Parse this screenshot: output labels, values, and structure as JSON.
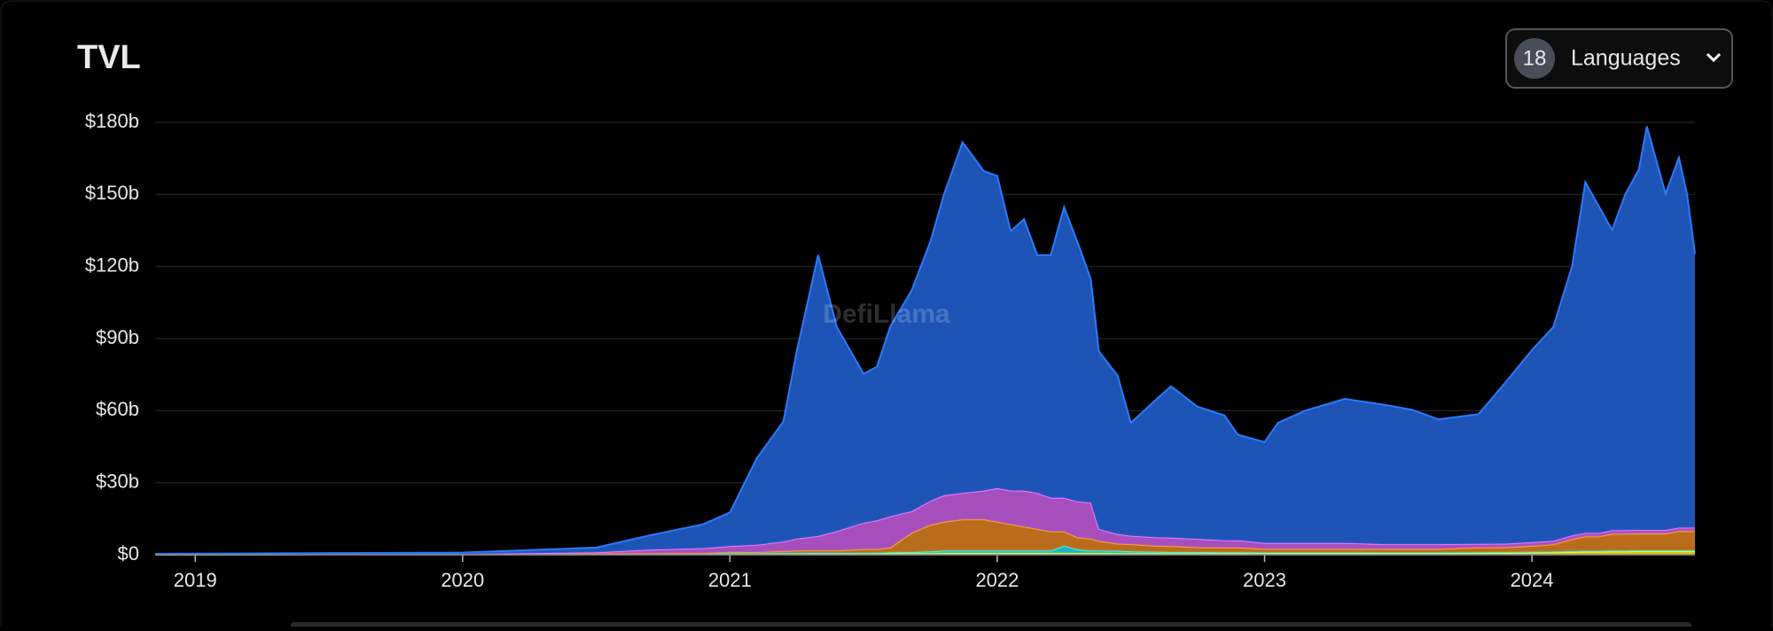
{
  "chart_data": {
    "type": "area",
    "stacked": true,
    "title": "TVL",
    "x": [
      2018.85,
      2019.5,
      2020.0,
      2020.5,
      2020.7,
      2020.9,
      2021.0,
      2021.1,
      2021.2,
      2021.25,
      2021.33,
      2021.4,
      2021.5,
      2021.55,
      2021.6,
      2021.68,
      2021.75,
      2021.8,
      2021.87,
      2021.95,
      2022.0,
      2022.05,
      2022.1,
      2022.15,
      2022.2,
      2022.25,
      2022.3,
      2022.35,
      2022.38,
      2022.45,
      2022.5,
      2022.6,
      2022.65,
      2022.75,
      2022.85,
      2022.9,
      2023.0,
      2023.05,
      2023.15,
      2023.3,
      2023.45,
      2023.55,
      2023.65,
      2023.8,
      2023.9,
      2024.0,
      2024.08,
      2024.15,
      2024.2,
      2024.25,
      2024.3,
      2024.35,
      2024.4,
      2024.43,
      2024.5,
      2024.55,
      2024.58,
      2024.61
    ],
    "series": [
      {
        "color": "#f2d21b",
        "values": [
          0.1,
          0.2,
          0.2,
          0.3,
          0.3,
          0.3,
          0.4,
          0.4,
          0.5,
          0.5,
          0.5,
          0.5,
          0.5,
          0.5,
          0.6,
          0.6,
          0.6,
          0.7,
          0.7,
          0.7,
          0.7,
          0.7,
          0.7,
          0.7,
          0.7,
          0.7,
          0.7,
          0.7,
          0.7,
          0.6,
          0.6,
          0.6,
          0.6,
          0.6,
          0.6,
          0.6,
          0.6,
          0.6,
          0.6,
          0.6,
          0.6,
          0.6,
          0.6,
          0.7,
          0.8,
          0.9,
          1,
          1.2,
          1.3,
          1.3,
          1.4,
          1.4,
          1.5,
          1.5,
          1.5,
          1.5,
          1.5,
          1.5
        ]
      },
      {
        "color": "#22c3d6",
        "values": [
          0,
          0,
          0.1,
          0.1,
          0.1,
          0.1,
          0.2,
          0.2,
          0.2,
          0.2,
          0.3,
          0.3,
          0.3,
          0.3,
          0.4,
          0.5,
          0.8,
          1,
          1,
          1,
          1,
          1,
          1,
          1,
          1,
          3,
          1.5,
          1,
          1,
          1,
          0.8,
          0.6,
          0.5,
          0.5,
          0.4,
          0.4,
          0.3,
          0.3,
          0.3,
          0.3,
          0.3,
          0.3,
          0.3,
          0.3,
          0.3,
          0.3,
          0.3,
          0.3,
          0.3,
          0.3,
          0.3,
          0.3,
          0.3,
          0.3,
          0.3,
          0.3,
          0.3,
          0.3
        ]
      },
      {
        "color": "#c9761e",
        "values": [
          0,
          0,
          0,
          0.1,
          0.2,
          0.3,
          0.5,
          0.5,
          0.8,
          1,
          1,
          1,
          1.5,
          1.5,
          2,
          8,
          11,
          12,
          13,
          13,
          12,
          11,
          10,
          9,
          8,
          6,
          5,
          5,
          4,
          3,
          3,
          2.5,
          2.5,
          2,
          2,
          2,
          1.5,
          1.5,
          1.5,
          1.5,
          1.5,
          1.5,
          1.5,
          2,
          2,
          2.5,
          3,
          5,
          6,
          6,
          7,
          7,
          7,
          7,
          7,
          8,
          8,
          8
        ]
      },
      {
        "color": "#b455cc",
        "values": [
          0,
          0,
          0,
          0.5,
          1.5,
          2,
          2.5,
          3,
          4,
          5,
          6,
          8,
          11,
          12,
          13,
          9,
          10,
          11,
          11,
          12,
          14,
          14,
          15,
          15,
          14,
          14,
          15,
          15,
          5,
          4,
          3.5,
          3.5,
          3.5,
          3.5,
          3,
          3,
          2.5,
          2.5,
          2.5,
          2.5,
          2,
          2,
          2,
          1.5,
          1.5,
          1.5,
          1.5,
          1.5,
          1.5,
          1.5,
          1.5,
          1.5,
          1.5,
          1.5,
          1.5,
          1.5,
          1.5,
          1.5
        ]
      },
      {
        "color": "#1f5bc4",
        "values": [
          0.3,
          0.5,
          0.6,
          2,
          6,
          10,
          14,
          36,
          50,
          78,
          117,
          85,
          62,
          64,
          79,
          92,
          108,
          125,
          146,
          133,
          130,
          108,
          113,
          99,
          101,
          121,
          108,
          93,
          74,
          66,
          47,
          58,
          63,
          55,
          52,
          44,
          42,
          50,
          55,
          60,
          58,
          56,
          52,
          54,
          67,
          80,
          89,
          112,
          146,
          136,
          125,
          140,
          150,
          168,
          140,
          154,
          139,
          114
        ]
      }
    ],
    "xlim": [
      2018.85,
      2024.61
    ],
    "xticks": [
      2019,
      2020,
      2021,
      2022,
      2023,
      2024
    ],
    "ylim": [
      0,
      180
    ],
    "yticks": [
      {
        "value": 0,
        "label": "$0"
      },
      {
        "value": 30,
        "label": "$30b"
      },
      {
        "value": 60,
        "label": "$60b"
      },
      {
        "value": 90,
        "label": "$90b"
      },
      {
        "value": 120,
        "label": "$120b"
      },
      {
        "value": 150,
        "label": "$150b"
      },
      {
        "value": 180,
        "label": "$180b"
      }
    ],
    "grid": true
  },
  "watermark": "DefiLlama",
  "control": {
    "count": 18,
    "label": "Languages"
  }
}
